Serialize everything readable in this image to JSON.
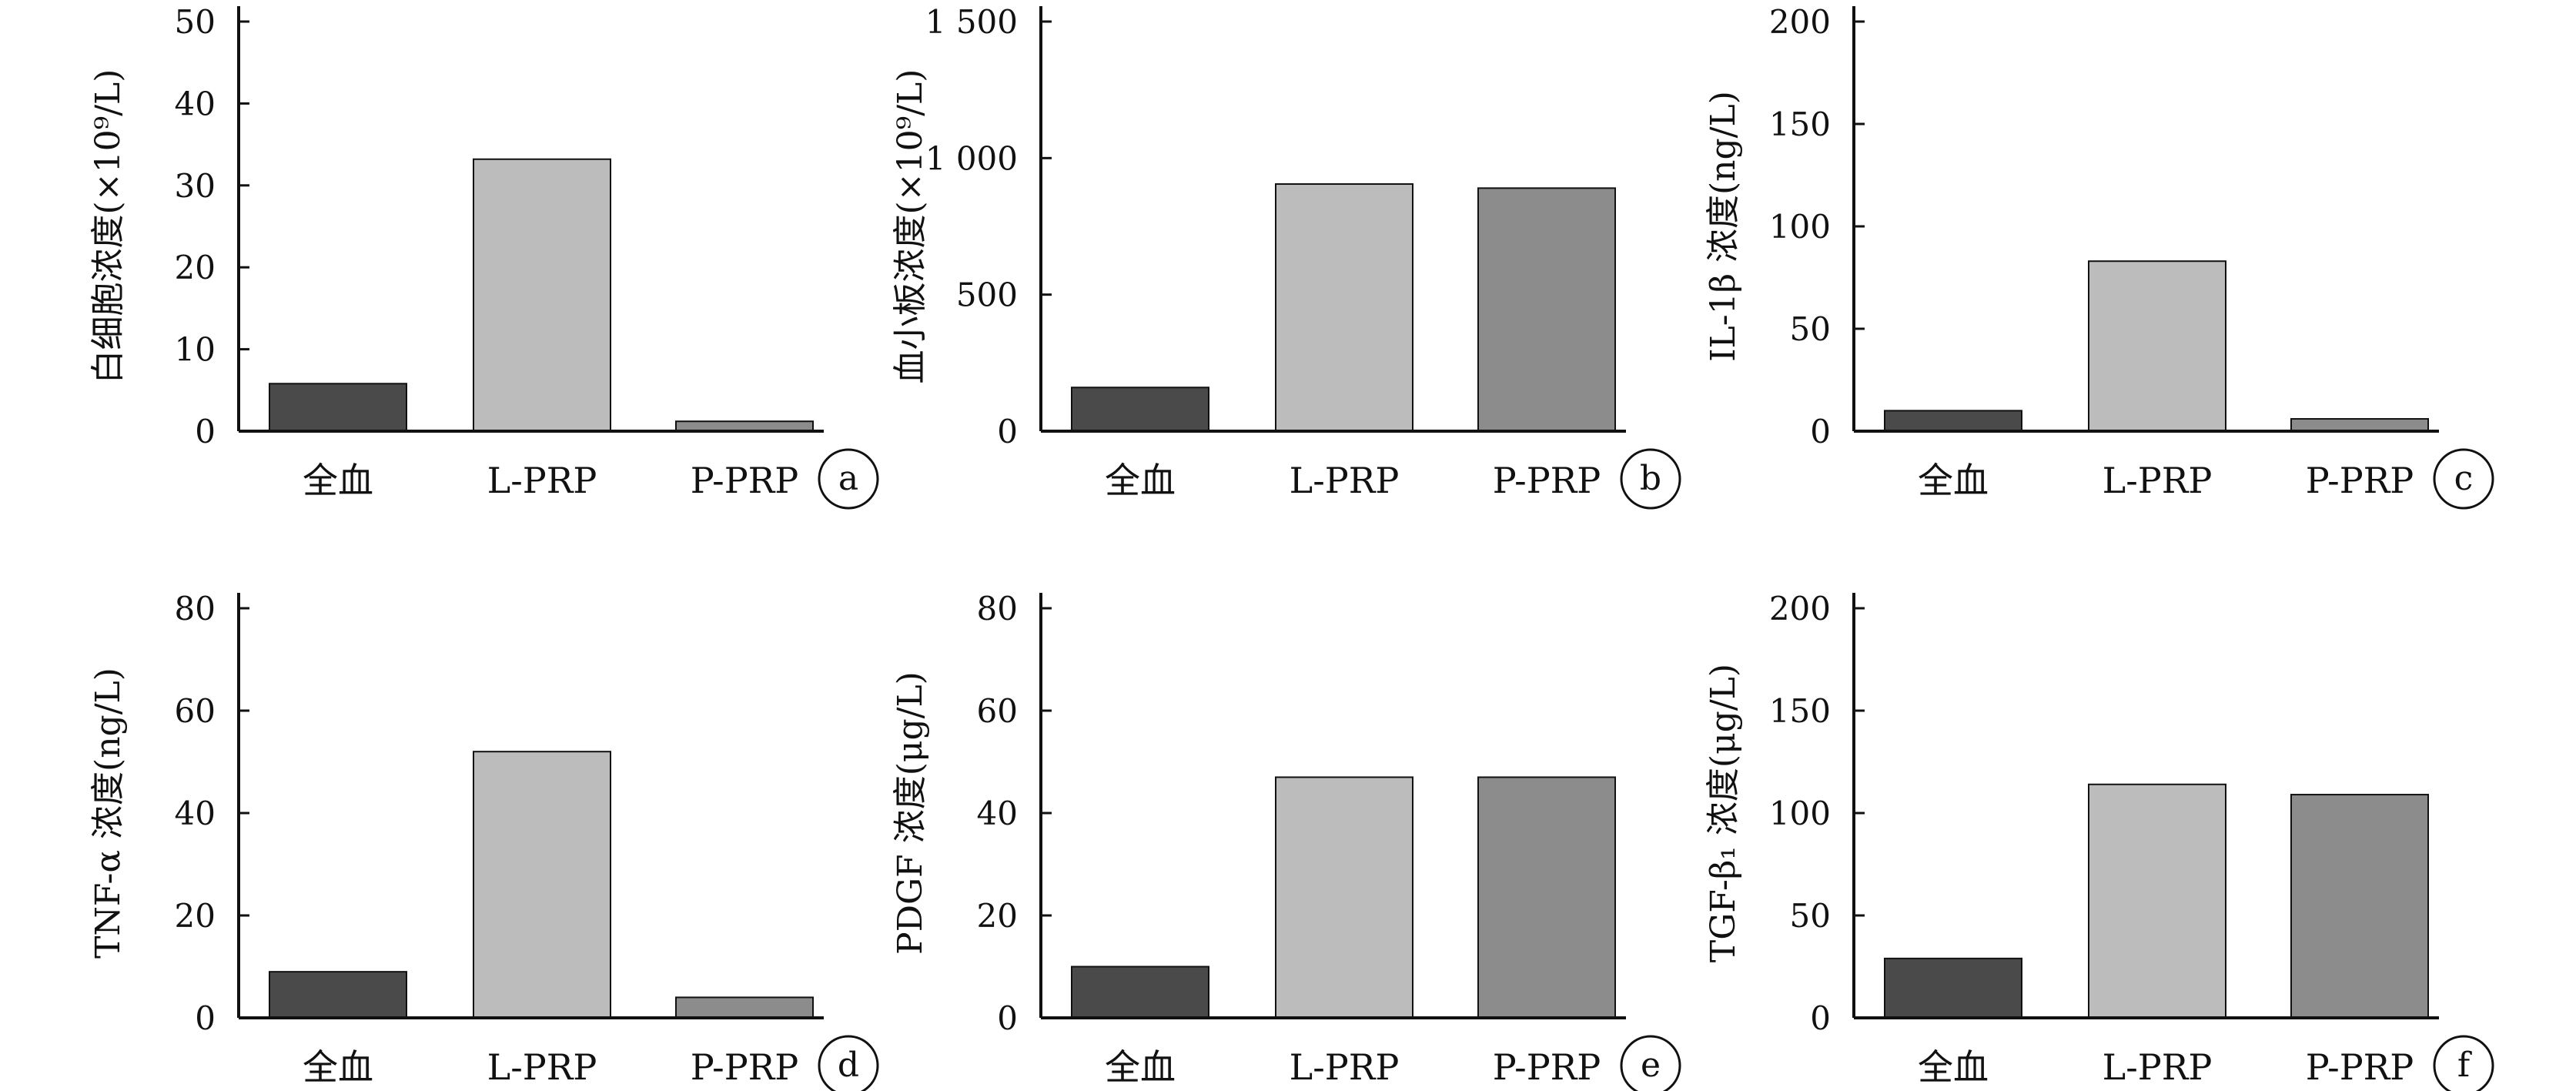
{
  "colors": {
    "全血": "#4a4a4a",
    "L-PRP": "#bcbcbc",
    "P-PRP": "#8c8c8c",
    "axis": "#111111"
  },
  "chart_data": [
    {
      "type": "bar",
      "panel": "a",
      "categories": [
        "全血",
        "L-PRP",
        "P-PRP"
      ],
      "values": [
        5.8,
        33.2,
        1.2
      ],
      "ylabel": "白细胞浓度(×10⁹/L)",
      "ylim": [
        0,
        50
      ],
      "yticks": [
        0,
        10,
        20,
        30,
        40,
        50
      ],
      "ytick_labels": [
        "0",
        "10",
        "20",
        "30",
        "40",
        "50"
      ]
    },
    {
      "type": "bar",
      "panel": "b",
      "categories": [
        "全血",
        "L-PRP",
        "P-PRP"
      ],
      "values": [
        160,
        905,
        890
      ],
      "ylabel": "血小板浓度(×10⁹/L)",
      "ylim": [
        0,
        1500
      ],
      "yticks": [
        0,
        500,
        1000,
        1500
      ],
      "ytick_labels": [
        "0",
        "500",
        "1 000",
        "1 500"
      ]
    },
    {
      "type": "bar",
      "panel": "c",
      "categories": [
        "全血",
        "L-PRP",
        "P-PRP"
      ],
      "values": [
        10,
        83,
        6
      ],
      "ylabel": "IL-1β 浓度(ng/L)",
      "ylim": [
        0,
        200
      ],
      "yticks": [
        0,
        50,
        100,
        150,
        200
      ],
      "ytick_labels": [
        "0",
        "50",
        "100",
        "150",
        "200"
      ]
    },
    {
      "type": "bar",
      "panel": "d",
      "categories": [
        "全血",
        "L-PRP",
        "P-PRP"
      ],
      "values": [
        9,
        52,
        4
      ],
      "ylabel": "TNF-α 浓度(ng/L)",
      "ylim": [
        0,
        80
      ],
      "yticks": [
        0,
        20,
        40,
        60,
        80
      ],
      "ytick_labels": [
        "0",
        "20",
        "40",
        "60",
        "80"
      ]
    },
    {
      "type": "bar",
      "panel": "e",
      "categories": [
        "全血",
        "L-PRP",
        "P-PRP"
      ],
      "values": [
        10,
        47,
        47
      ],
      "ylabel": "PDGF 浓度(μg/L)",
      "ylim": [
        0,
        80
      ],
      "yticks": [
        0,
        20,
        40,
        60,
        80
      ],
      "ytick_labels": [
        "0",
        "20",
        "40",
        "60",
        "80"
      ]
    },
    {
      "type": "bar",
      "panel": "f",
      "categories": [
        "全血",
        "L-PRP",
        "P-PRP"
      ],
      "values": [
        29,
        114,
        109
      ],
      "ylabel": "TGF-β₁ 浓度(μg/L)",
      "ylim": [
        0,
        200
      ],
      "yticks": [
        0,
        50,
        100,
        150,
        200
      ],
      "ytick_labels": [
        "0",
        "50",
        "100",
        "150",
        "200"
      ]
    }
  ]
}
